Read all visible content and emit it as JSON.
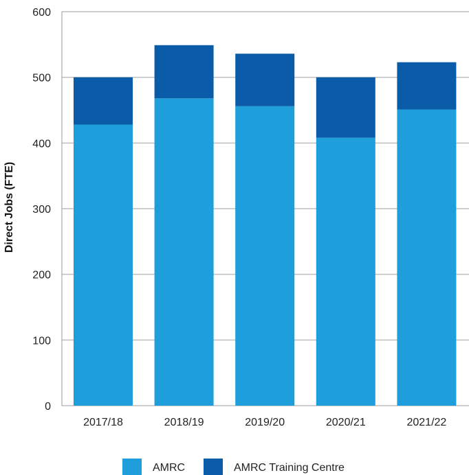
{
  "chart_data": {
    "type": "bar",
    "stacked": true,
    "categories": [
      "2017/18",
      "2018/19",
      "2019/20",
      "2020/21",
      "2021/22"
    ],
    "series": [
      {
        "name": "AMRC",
        "values": [
          428,
          468,
          456,
          408,
          451
        ],
        "color": "#1e9fdb"
      },
      {
        "name": "AMRC Training Centre",
        "values": [
          72,
          81,
          80,
          92,
          72
        ],
        "color": "#0b5ca8"
      }
    ],
    "title": "",
    "xlabel": "",
    "ylabel": "Direct Jobs (FTE)",
    "ylim": [
      0,
      600
    ],
    "yticks": [
      0,
      100,
      200,
      300,
      400,
      500,
      600
    ],
    "grid": true,
    "legend_position": "bottom"
  }
}
